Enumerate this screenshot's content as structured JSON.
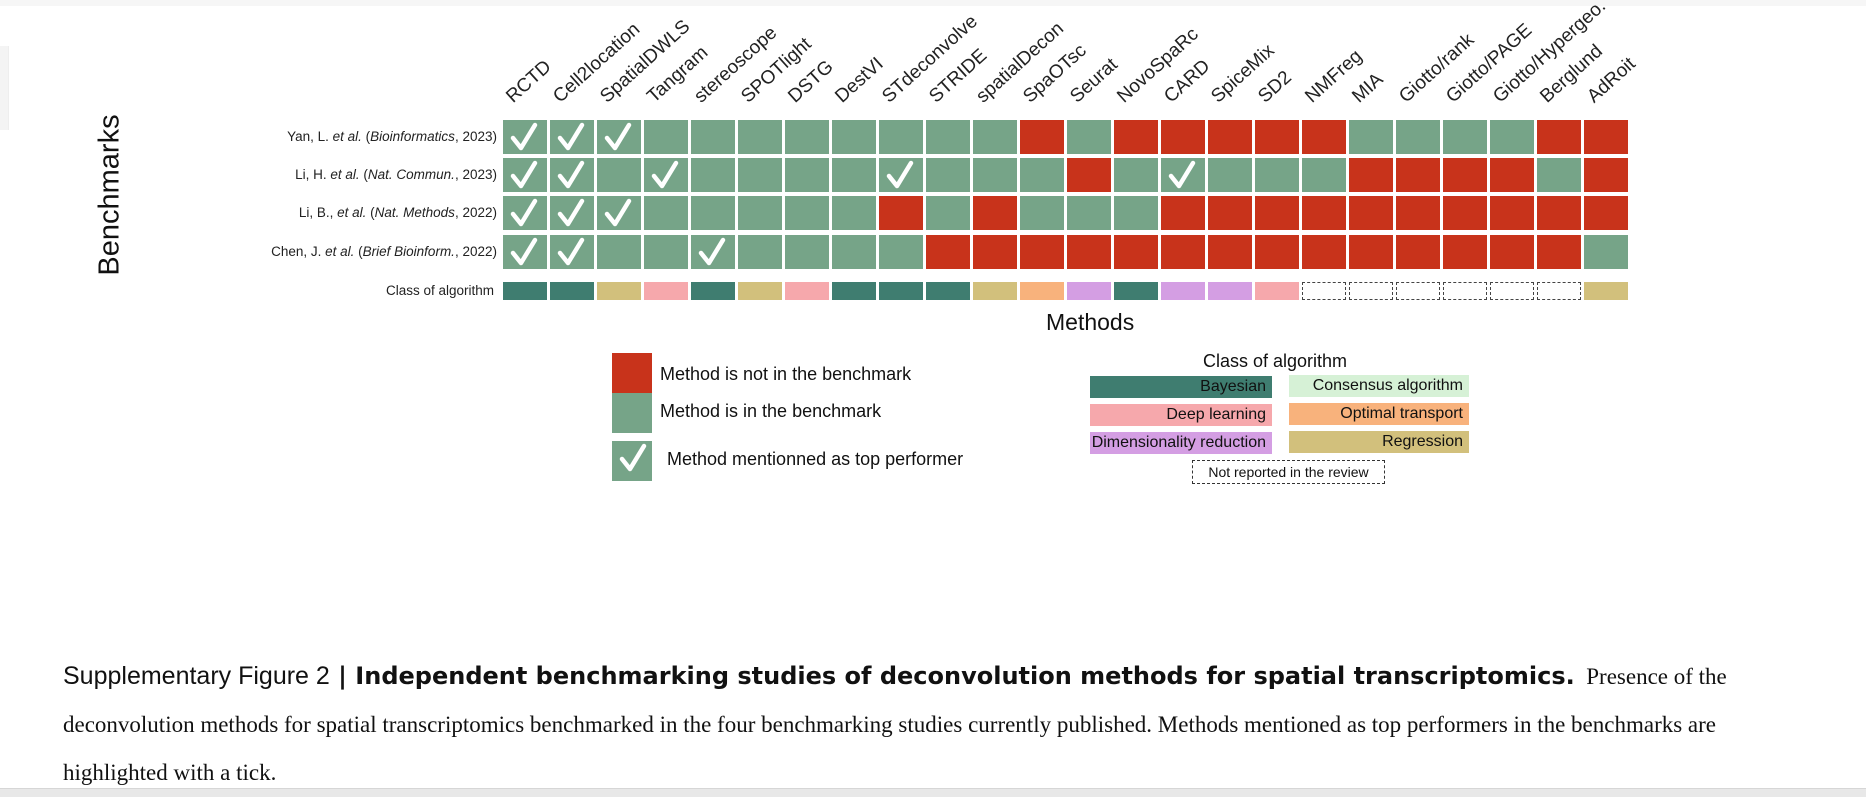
{
  "figure": {
    "y_axis_label": "Benchmarks",
    "x_axis_label": "Methods",
    "class_row_label": "Class of algorithm",
    "methods": [
      "RCTD",
      "Cell2location",
      "SpatialDWLS",
      "Tangram",
      "stereoscope",
      "SPOTlight",
      "DSTG",
      "DestVI",
      "STdeconvolve",
      "STRIDE",
      "spatialDecon",
      "SpaOTsc",
      "Seurat",
      "NovoSpaRc",
      "CARD",
      "SpiceMix",
      "SD2",
      "NMFreg",
      "MIA",
      "Giotto/rank",
      "Giotto/PAGE",
      "Giotto/Hypergeo.",
      "Berglund",
      "AdRoit"
    ],
    "studies": [
      {
        "author": "Yan, L.",
        "etal": "et al.",
        "journal": "Bioinformatics",
        "year": "2023",
        "in_benchmark": [
          1,
          1,
          1,
          1,
          1,
          1,
          1,
          1,
          1,
          1,
          1,
          0,
          1,
          0,
          0,
          0,
          0,
          0,
          1,
          1,
          1,
          1,
          0,
          0
        ],
        "top": [
          0,
          1,
          2
        ]
      },
      {
        "author": "Li, H.",
        "etal": "et al.",
        "journal": "Nat. Commun.",
        "year": "2023",
        "in_benchmark": [
          1,
          1,
          1,
          1,
          1,
          1,
          1,
          1,
          1,
          1,
          1,
          1,
          0,
          1,
          1,
          1,
          1,
          1,
          0,
          0,
          0,
          0,
          1,
          0
        ],
        "top": [
          0,
          1,
          3,
          8,
          14
        ]
      },
      {
        "author": "Li, B.,",
        "etal": "et al.",
        "journal": "Nat. Methods",
        "year": "2022",
        "in_benchmark": [
          1,
          1,
          1,
          1,
          1,
          1,
          1,
          1,
          0,
          1,
          0,
          1,
          1,
          1,
          0,
          0,
          0,
          0,
          0,
          0,
          0,
          0,
          0,
          0
        ],
        "top": [
          0,
          1,
          2
        ]
      },
      {
        "author": "Chen, J.",
        "etal": "et al.",
        "journal": "Brief Bioinform.",
        "year": "2022",
        "in_benchmark": [
          1,
          1,
          1,
          1,
          1,
          1,
          1,
          1,
          1,
          0,
          0,
          0,
          0,
          0,
          0,
          0,
          0,
          0,
          0,
          0,
          0,
          0,
          0,
          1
        ],
        "top": [
          0,
          1,
          4
        ]
      }
    ],
    "method_classes": [
      "bayesian",
      "bayesian",
      "regression",
      "deep",
      "bayesian",
      "regression",
      "deep",
      "bayesian",
      "bayesian",
      "bayesian",
      "regression",
      "optimal",
      "dimred",
      "bayesian",
      "dimred",
      "dimred",
      "deep",
      "none",
      "none",
      "none",
      "none",
      "none",
      "none",
      "regression"
    ],
    "colors": {
      "not_in": "#c8331b",
      "in": "#76a488",
      "bayesian": "#3f7d70",
      "consensus": "#d6f1d6",
      "deep": "#f6a8ac",
      "optimal": "#f8b27c",
      "dimred": "#d49ee3",
      "regression": "#d2c07c"
    }
  },
  "legend": {
    "not_in": "Method is not in the benchmark",
    "in": "Method is in the benchmark",
    "top": "Method mentionned as top performer",
    "class_title": "Class of algorithm",
    "classes": {
      "bayesian": "Bayesian",
      "consensus": "Consensus algorithm",
      "deep": "Deep learning",
      "optimal": "Optimal transport",
      "dimred": "Dimensionality reduction",
      "regression": "Regression"
    },
    "not_reported": "Not reported in the review"
  },
  "caption": {
    "label": "Supplementary Figure 2",
    "separator": " | ",
    "title": "Independent benchmarking studies of deconvolution methods for spatial transcriptomics.",
    "body": "Presence of the deconvolution methods for spatial transcriptomics benchmarked in the four benchmarking studies currently published. Methods mentioned as top performers in the benchmarks are highlighted with a tick."
  }
}
